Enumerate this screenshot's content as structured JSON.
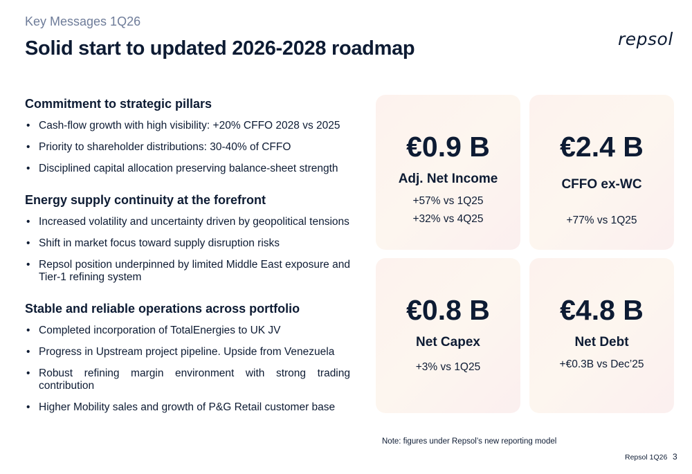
{
  "header": {
    "section": "Key Messages 1Q26",
    "title": "Solid start to updated 2026-2028 roadmap",
    "logo": "repsol"
  },
  "sections": [
    {
      "heading": "Commitment to strategic pillars",
      "items": [
        "Cash-flow growth with high visibility: +20% CFFO 2028 vs 2025",
        "Priority to shareholder distributions: 30-40% of CFFO",
        "Disciplined capital allocation preserving balance-sheet strength"
      ]
    },
    {
      "heading": "Energy supply continuity at the forefront",
      "items": [
        "Increased volatility and uncertainty driven by geopolitical tensions",
        "Shift in market focus toward supply disruption risks",
        "Repsol position underpinned by limited Middle East exposure and Tier-1 refining system"
      ]
    },
    {
      "heading": "Stable and reliable operations across portfolio",
      "items": [
        "Completed incorporation of TotalEnergies to UK JV",
        "Progress in Upstream project pipeline. Upside from Venezuela",
        "Robust refining margin environment with strong trading contribution",
        "Higher Mobility sales and growth of P&G Retail customer base"
      ]
    }
  ],
  "cards": [
    {
      "value": "€0.9 B",
      "label": "Adj. Net Income",
      "sub1": "+57% vs 1Q25",
      "sub2": "+32% vs 4Q25"
    },
    {
      "value": "€2.4 B",
      "label": "CFFO ex-WC",
      "sub1": "+77% vs 1Q25"
    },
    {
      "value": "€0.8 B",
      "label": "Net Capex",
      "sub1": "+3% vs 1Q25"
    },
    {
      "value": "€4.8 B",
      "label": "Net Debt",
      "sub1": "+€0.3B vs Dec’25"
    }
  ],
  "note": "Note: figures under Repsol’s new reporting model",
  "footer": {
    "label": "Repsol 1Q26",
    "page": "3"
  }
}
